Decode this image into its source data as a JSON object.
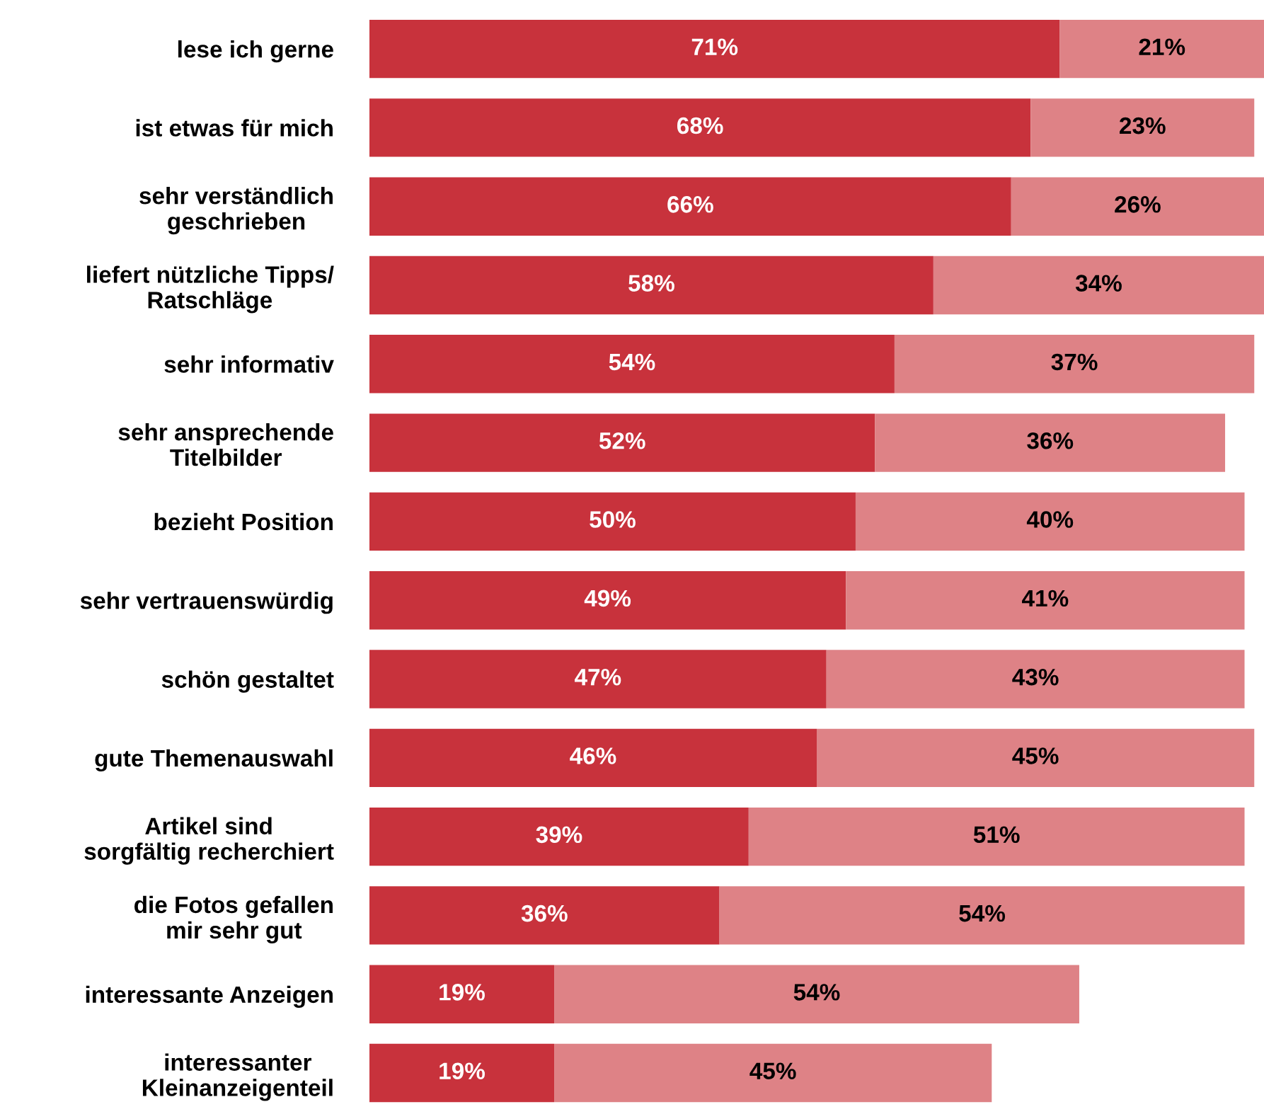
{
  "chart_data": {
    "type": "bar",
    "orientation": "horizontal",
    "stacked": true,
    "grid": false,
    "legend": false,
    "tick_labels": "y",
    "categories": [
      "lese ich gerne",
      "ist etwas für mich",
      "sehr verständlich\ngeschrieben",
      "liefert nützliche Tipps/\nRatschläge",
      "sehr informativ",
      "sehr ansprechende\nTitelbilder",
      "bezieht Position",
      "sehr vertrauenswürdig",
      "schön gestaltet",
      "gute Themenauswahl",
      "Artikel sind\nsorgfältig recherchiert",
      "die Fotos gefallen\nmir sehr gut",
      "interessante Anzeigen",
      "interessanter\nKleinanzeigenteil"
    ],
    "series": [
      {
        "color": "#c8323c",
        "values": [
          71,
          68,
          66,
          58,
          54,
          52,
          50,
          49,
          47,
          46,
          39,
          36,
          19,
          19
        ],
        "value_labels": [
          "71%",
          "68%",
          "66%",
          "58%",
          "54%",
          "52%",
          "50%",
          "49%",
          "47%",
          "46%",
          "39%",
          "36%",
          "19%",
          "19%"
        ]
      },
      {
        "color": "#de8286",
        "values": [
          21,
          23,
          26,
          34,
          37,
          36,
          40,
          41,
          43,
          45,
          51,
          54,
          54,
          45
        ],
        "value_labels": [
          "21%",
          "23%",
          "26%",
          "34%",
          "37%",
          "36%",
          "40%",
          "41%",
          "43%",
          "45%",
          "51%",
          "54%",
          "54%",
          "45%"
        ]
      }
    ]
  }
}
